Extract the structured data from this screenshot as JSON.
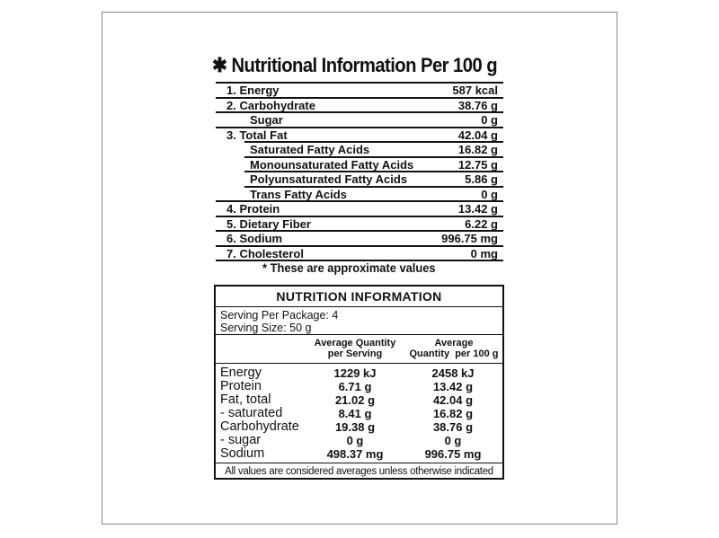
{
  "per100": {
    "title": "Nutritional Information Per 100 g",
    "asterisk": "✱",
    "rows": [
      {
        "label": "1. Energy",
        "value": "587 kcal",
        "level": "main"
      },
      {
        "label": "2. Carbohydrate",
        "value": "38.76 g",
        "level": "main"
      },
      {
        "label": "Sugar",
        "value": "0 g",
        "level": "sugar"
      },
      {
        "label": "3. Total Fat",
        "value": "42.04 g",
        "level": "main"
      },
      {
        "label": "Saturated Fatty Acids",
        "value": "16.82 g",
        "level": "sub"
      },
      {
        "label": "Monounsaturated Fatty Acids",
        "value": "12.75 g",
        "level": "sub"
      },
      {
        "label": "Polyunsaturated Fatty Acids",
        "value": "5.86 g",
        "level": "sub"
      },
      {
        "label": "Trans Fatty Acids",
        "value": "0 g",
        "level": "sub"
      },
      {
        "label": "4. Protein",
        "value": "13.42 g",
        "level": "main"
      },
      {
        "label": "5. Dietary Fiber",
        "value": "6.22 g",
        "level": "main"
      },
      {
        "label": "6. Sodium",
        "value": "996.75 mg",
        "level": "main"
      },
      {
        "label": "7. Cholesterol",
        "value": "0 mg",
        "level": "main"
      }
    ],
    "footnote": "* These are approximate values"
  },
  "panel": {
    "title": "NUTRITION INFORMATION",
    "serving_per_package": "Serving Per Package: 4",
    "serving_size": "Serving Size: 50 g",
    "col1_header": [
      "Average Quantity",
      "per Serving"
    ],
    "col2_header": [
      "Average",
      "Quantity  per 100 g"
    ],
    "rows": [
      {
        "label": "Energy",
        "per_serving": "1229 kJ",
        "per_100g": "2458 kJ"
      },
      {
        "label": "Protein",
        "per_serving": "6.71 g",
        "per_100g": "13.42 g"
      },
      {
        "label": "Fat, total",
        "per_serving": "21.02 g",
        "per_100g": "42.04 g"
      },
      {
        "label": "- saturated",
        "per_serving": "8.41 g",
        "per_100g": "16.82 g"
      },
      {
        "label": "Carbohydrate",
        "per_serving": "19.38 g",
        "per_100g": "38.76 g"
      },
      {
        "label": "- sugar",
        "per_serving": "0 g",
        "per_100g": "0 g"
      },
      {
        "label": "Sodium",
        "per_serving": "498.37 mg",
        "per_100g": "996.75 mg"
      }
    ],
    "footer": "All values are considered averages unless otherwise indicated"
  }
}
